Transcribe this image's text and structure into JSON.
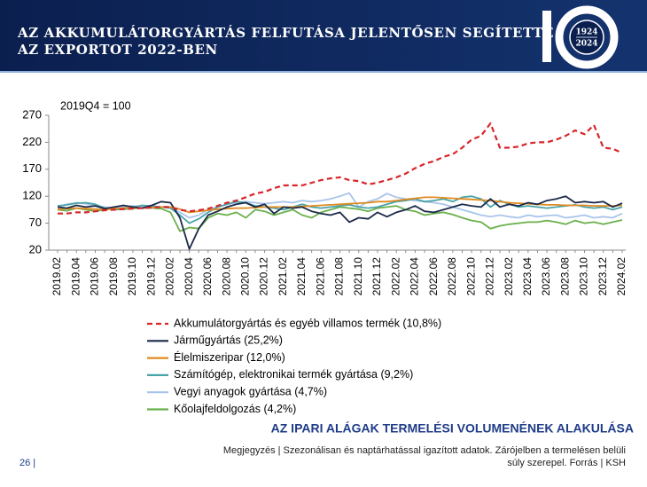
{
  "header": {
    "title_lines": [
      "AZ AKKUMULÁTORGYÁRTÁS FELFUTÁSA JELENTŐSEN SEGÍTETTE",
      "AZ EXPORTOT 2022-BEN"
    ],
    "logo_years": [
      "1924",
      "2024"
    ]
  },
  "chart_data": {
    "type": "line",
    "subtitle": "2019Q4 = 100",
    "categories": [
      "2019.02",
      null,
      "2019.04",
      null,
      "2019.06",
      null,
      "2019.08",
      null,
      "2019.10",
      null,
      "2019.12",
      null,
      "2020.02",
      null,
      "2020.04",
      null,
      "2020.06",
      null,
      "2020.08",
      null,
      "2020.10",
      null,
      "2020.12",
      null,
      "2021.02",
      null,
      "2021.04",
      null,
      "2021.06",
      null,
      "2021.08",
      null,
      "2021.10",
      null,
      "2021.12",
      null,
      "2022.02",
      null,
      "2022.04",
      null,
      "2022.06",
      null,
      "2022.08",
      null,
      "2022.10",
      null,
      "2022.12",
      null,
      "2023.02",
      null,
      "2023.04",
      null,
      "2023.06",
      null,
      "2023.08",
      null,
      "2023.10",
      null,
      "2023.12",
      null,
      "2024.02"
    ],
    "ylim": [
      20,
      270
    ],
    "yticks": [
      20,
      70,
      120,
      170,
      220,
      270
    ],
    "series": [
      {
        "name": "Akkumulátorgyártás és egyéb villamos termék (10,8%)",
        "color": "#d9252a",
        "dashed": true,
        "values": [
          88,
          88,
          90,
          90,
          92,
          94,
          95,
          96,
          97,
          98,
          99,
          100,
          100,
          95,
          92,
          94,
          97,
          102,
          108,
          112,
          118,
          125,
          128,
          135,
          140,
          140,
          140,
          145,
          150,
          153,
          155,
          150,
          148,
          142,
          145,
          150,
          155,
          162,
          172,
          180,
          185,
          193,
          198,
          210,
          225,
          232,
          255,
          210,
          210,
          212,
          218,
          220,
          220,
          225,
          232,
          242,
          235,
          252,
          210,
          208,
          200
        ]
      },
      {
        "name": "Járműgyártás (25,2%)",
        "color": "#1b2a4a",
        "values": [
          100,
          98,
          103,
          100,
          102,
          97,
          100,
          103,
          100,
          98,
          103,
          110,
          108,
          80,
          22,
          60,
          85,
          92,
          100,
          105,
          108,
          100,
          105,
          88,
          100,
          98,
          100,
          92,
          88,
          85,
          90,
          72,
          80,
          78,
          90,
          82,
          90,
          95,
          102,
          92,
          90,
          95,
          100,
          105,
          102,
          100,
          115,
          100,
          105,
          102,
          108,
          105,
          112,
          115,
          120,
          108,
          110,
          108,
          110,
          100,
          107
        ]
      },
      {
        "name": "Élelmiszeripar (12,0%)",
        "color": "#e08a1e",
        "values": [
          96,
          97,
          98,
          97,
          96,
          95,
          97,
          98,
          99,
          98,
          99,
          100,
          100,
          96,
          90,
          92,
          94,
          96,
          97,
          98,
          98,
          99,
          100,
          100,
          100,
          100,
          101,
          102,
          103,
          104,
          105,
          106,
          107,
          108,
          110,
          110,
          112,
          114,
          116,
          118,
          118,
          117,
          116,
          115,
          114,
          113,
          112,
          110,
          108,
          107,
          106,
          105,
          104,
          104,
          103,
          103,
          103,
          102,
          102,
          102,
          103
        ]
      },
      {
        "name": "Számítógép, elektronikai termék gyártása (9,2%)",
        "color": "#4aa3a8",
        "values": [
          102,
          104,
          107,
          108,
          105,
          98,
          95,
          96,
          100,
          103,
          102,
          100,
          98,
          85,
          70,
          78,
          90,
          100,
          105,
          110,
          108,
          102,
          100,
          98,
          95,
          100,
          105,
          100,
          98,
          100,
          102,
          104,
          100,
          98,
          100,
          105,
          110,
          112,
          115,
          110,
          112,
          115,
          110,
          118,
          120,
          115,
          100,
          112,
          105,
          100,
          102,
          100,
          98,
          100,
          102,
          104,
          100,
          98,
          100,
          95,
          100
        ]
      },
      {
        "name": "Vegyi anyagok gyártása (4,7%)",
        "color": "#a9c4ea",
        "values": [
          100,
          105,
          108,
          106,
          102,
          100,
          98,
          100,
          102,
          100,
          98,
          100,
          100,
          90,
          80,
          85,
          95,
          100,
          105,
          108,
          110,
          108,
          106,
          108,
          110,
          108,
          112,
          110,
          112,
          115,
          120,
          126,
          100,
          110,
          115,
          125,
          118,
          115,
          112,
          110,
          108,
          105,
          100,
          95,
          90,
          85,
          82,
          85,
          82,
          80,
          85,
          82,
          84,
          85,
          80,
          82,
          85,
          80,
          82,
          80,
          88
        ]
      },
      {
        "name": "Kőolajfeldolgozás (4,2%)",
        "color": "#6ab04c",
        "values": [
          95,
          93,
          98,
          95,
          92,
          95,
          98,
          96,
          97,
          100,
          98,
          97,
          90,
          55,
          62,
          60,
          80,
          88,
          85,
          90,
          80,
          95,
          92,
          85,
          90,
          95,
          85,
          80,
          90,
          95,
          100,
          98,
          96,
          92,
          98,
          100,
          102,
          95,
          92,
          85,
          88,
          90,
          86,
          80,
          75,
          72,
          60,
          65,
          68,
          70,
          72,
          72,
          75,
          72,
          68,
          75,
          70,
          72,
          68,
          72,
          76
        ]
      }
    ]
  },
  "footer": {
    "section_title": "AZ IPARI ALÁGAK TERMELÉSI VOLUMENÉNEK ALAKULÁSA",
    "note_lines": [
      "Megjegyzés |  Szezonálisan és naptárhatással igazított adatok. Zárójelben a termelésen belüli",
      "súly szerepel. Forrás | KSH"
    ],
    "page": "26 |"
  }
}
